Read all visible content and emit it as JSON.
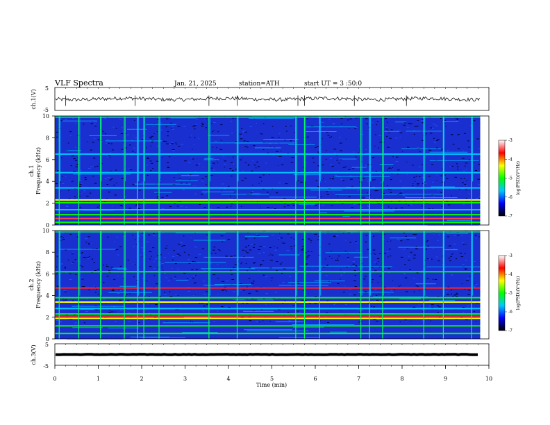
{
  "header": {
    "title": "VLF  Spectra",
    "date": "Jan. 21, 2025",
    "station": "station=ATH",
    "start": "start  UT  =    3  :50:0"
  },
  "colors": {
    "trace": "#111111",
    "spectrogram_background": "#1a2fd0",
    "colormap": [
      "#000000",
      "#0000ff",
      "#00c8ff",
      "#00ff00",
      "#ffff00",
      "#ff0000",
      "#ffffff"
    ]
  },
  "chart_data": [
    {
      "type": "line",
      "name": "ch1-timeseries",
      "ylabel": "ch.1(V)",
      "yticks": [
        "5",
        "-5"
      ],
      "ylim": [
        -5,
        5
      ],
      "xlim": [
        0,
        10
      ],
      "signal_end_min": 9.8,
      "level_v": 0,
      "noise_amplitude_v": 0.8,
      "spikes_min": [
        0.25,
        1.85,
        3.55,
        4.2,
        5.6,
        5.75,
        6.9,
        8.1
      ]
    },
    {
      "type": "heatmap",
      "name": "ch1-spectrogram",
      "ylabel": "ch.1\nFrequency (kHz)",
      "yticks": [
        "0",
        "2",
        "4",
        "6",
        "8",
        "10"
      ],
      "ylim": [
        0,
        10
      ],
      "xlim": [
        0,
        10
      ],
      "signal_end_min": 9.8,
      "colorbar": {
        "label": "log(PSD)(V²/Hz)",
        "ticks": [
          "-3",
          "-4",
          "-5",
          "-6",
          "-7"
        ],
        "range": [
          -7,
          -3
        ]
      },
      "bands_khz": [
        {
          "f": 0.25,
          "color": "#00ff00"
        },
        {
          "f": 0.6,
          "color": "#ff4040"
        },
        {
          "f": 0.95,
          "color": "#00ff00"
        },
        {
          "f": 1.4,
          "color": "#00c8ff"
        },
        {
          "f": 2.05,
          "color": "#00ff00"
        },
        {
          "f": 2.3,
          "color": "#ffff00"
        },
        {
          "f": 3.4,
          "color": "#00c8ff"
        },
        {
          "f": 4.8,
          "color": "#00c8ff"
        },
        {
          "f": 6.5,
          "color": "#00c8ff"
        }
      ],
      "vertical_lines_min": [
        0.1,
        0.55,
        1.05,
        1.6,
        1.9,
        2.05,
        2.4,
        3.55,
        4.2,
        5.55,
        5.75,
        6.1,
        7.05,
        7.25,
        7.55,
        8.5,
        8.95,
        9.6
      ]
    },
    {
      "type": "heatmap",
      "name": "ch2-spectrogram",
      "ylabel": "ch.2\nFrequency (kHz)",
      "yticks": [
        "0",
        "2",
        "4",
        "6",
        "8",
        "10"
      ],
      "ylim": [
        0,
        10
      ],
      "xlim": [
        0,
        10
      ],
      "signal_end_min": 9.8,
      "colorbar": {
        "label": "log(PSD)(V²/Hz)",
        "ticks": [
          "-3",
          "-4",
          "-5",
          "-6",
          "-7"
        ],
        "range": [
          -7,
          -3
        ]
      },
      "bands_khz": [
        {
          "f": 0.5,
          "color": "#00ff00"
        },
        {
          "f": 1.2,
          "color": "#00ff00"
        },
        {
          "f": 1.9,
          "color": "#ffff00"
        },
        {
          "f": 2.1,
          "color": "#ff2020"
        },
        {
          "f": 2.3,
          "color": "#00ff00"
        },
        {
          "f": 2.8,
          "color": "#00c8ff"
        },
        {
          "f": 3.4,
          "color": "#ffff00"
        },
        {
          "f": 3.8,
          "color": "#00ff00"
        },
        {
          "f": 4.7,
          "color": "#ff2020"
        },
        {
          "f": 6.2,
          "color": "#00ff00"
        }
      ],
      "vertical_lines_min": [
        0.1,
        0.55,
        1.05,
        1.6,
        1.9,
        2.05,
        2.4,
        3.55,
        4.2,
        5.55,
        5.75,
        6.1,
        7.05,
        7.25,
        7.55,
        8.5,
        8.95,
        9.6
      ]
    },
    {
      "type": "line",
      "name": "ch3-timeseries",
      "ylabel": "ch.3(V)",
      "yticks": [
        "5",
        "-5"
      ],
      "ylim": [
        -5,
        5
      ],
      "xlim": [
        0,
        10
      ],
      "signal_end_min": 9.8,
      "level_v": 0,
      "noise_amplitude_v": 0.1
    }
  ],
  "xaxis": {
    "label": "Time  (min)",
    "ticks": [
      "0",
      "1",
      "2",
      "3",
      "4",
      "5",
      "6",
      "7",
      "8",
      "9",
      "10"
    ]
  }
}
